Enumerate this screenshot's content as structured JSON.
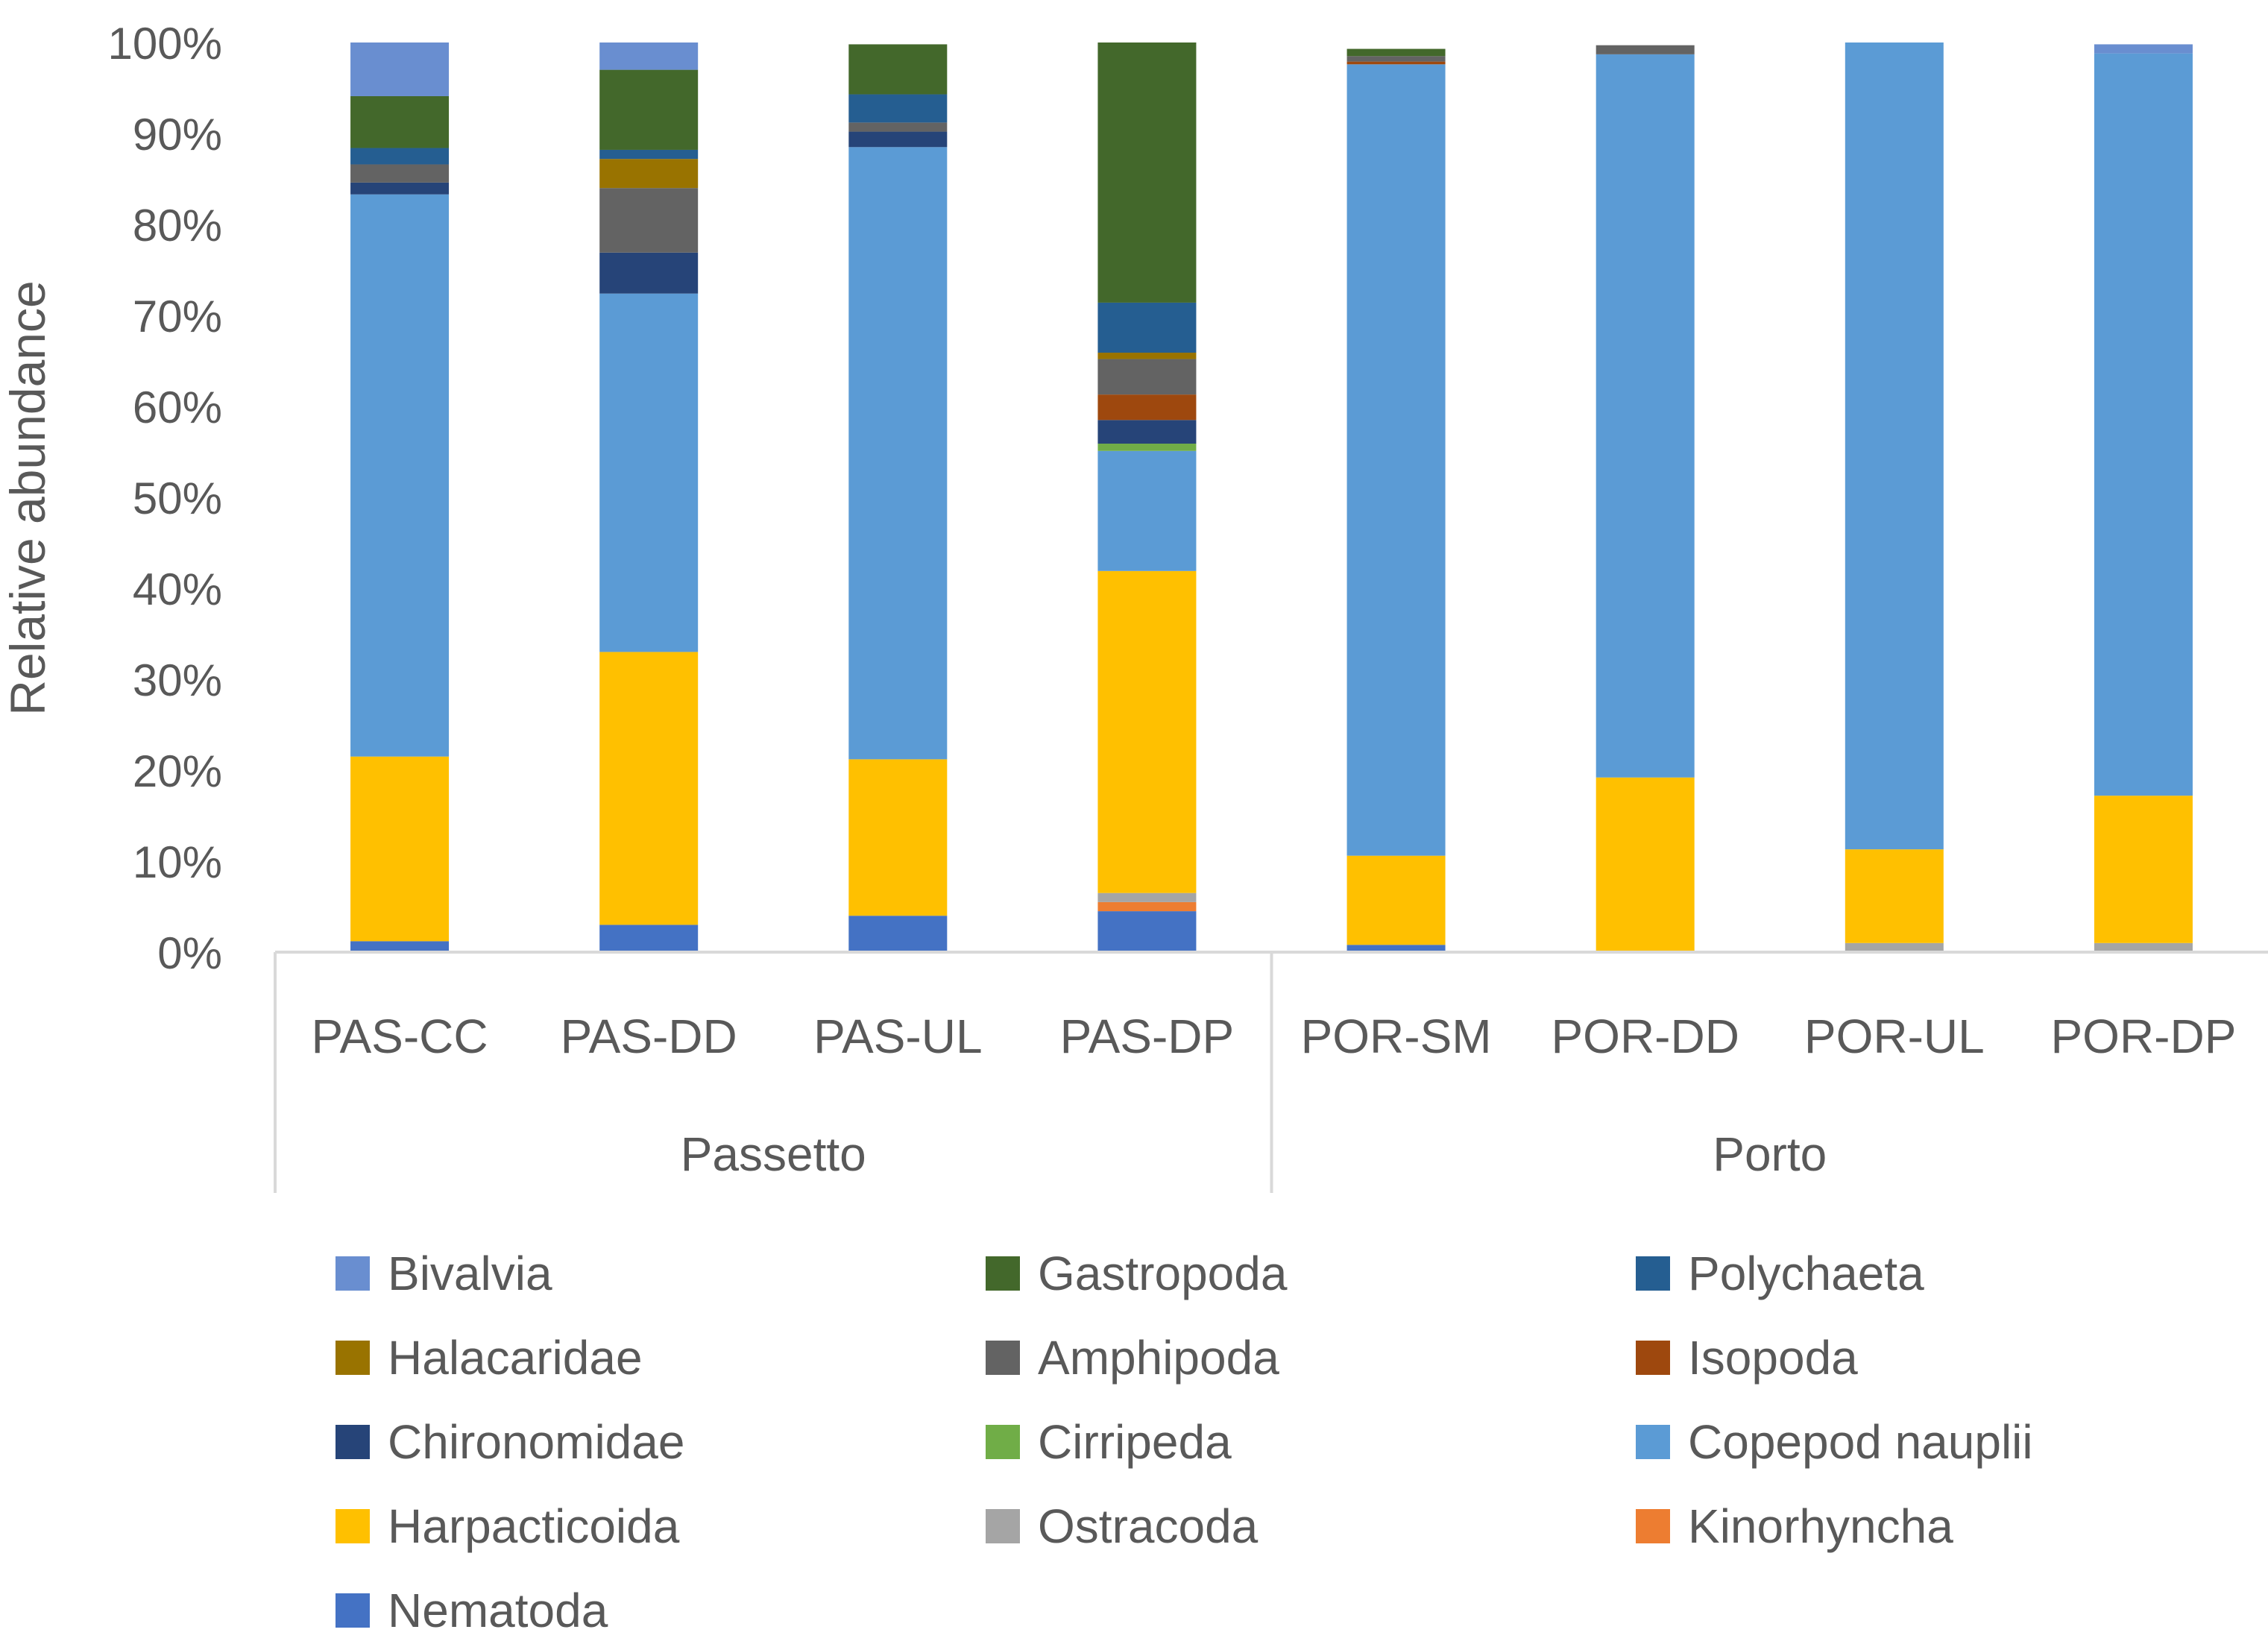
{
  "chart_data": {
    "type": "bar",
    "stacked": true,
    "percent": true,
    "ylabel": "Relative abundance",
    "ylim": [
      0,
      100
    ],
    "yticks": [
      "0%",
      "10%",
      "20%",
      "30%",
      "40%",
      "50%",
      "60%",
      "70%",
      "80%",
      "90%",
      "100%"
    ],
    "grid": false,
    "legend_position": "bottom",
    "groups": [
      {
        "name": "Passetto",
        "categories": [
          "PAS-CC",
          "PAS-DD",
          "PAS-UL",
          "PAS-DP"
        ]
      },
      {
        "name": "Porto",
        "categories": [
          "POR-SM",
          "POR-DD",
          "POR-UL",
          "POR-DP"
        ]
      }
    ],
    "categories": [
      "PAS-CC",
      "PAS-DD",
      "PAS-UL",
      "PAS-DP",
      "POR-SM",
      "POR-DD",
      "POR-UL",
      "POR-DP"
    ],
    "series": [
      {
        "name": "Nematoda",
        "color": "#4472C4",
        "values": [
          1.2,
          3.0,
          4.0,
          4.5,
          0.8,
          0.0,
          0.0,
          0.0
        ]
      },
      {
        "name": "Kinorhyncha",
        "color": "#ED7D31",
        "values": [
          0.0,
          0.0,
          0.0,
          1.0,
          0.0,
          0.0,
          0.0,
          0.0
        ]
      },
      {
        "name": "Ostracoda",
        "color": "#A5A5A5",
        "values": [
          0.0,
          0.0,
          0.0,
          1.0,
          0.0,
          0.0,
          1.0,
          1.0
        ]
      },
      {
        "name": "Harpacticoida",
        "color": "#FFC000",
        "values": [
          20.3,
          30.0,
          17.2,
          35.4,
          9.8,
          19.2,
          10.3,
          16.2
        ]
      },
      {
        "name": "Copepod nauplii",
        "color": "#5B9BD5",
        "values": [
          61.8,
          39.4,
          67.3,
          13.2,
          87.0,
          79.5,
          88.7,
          81.6
        ]
      },
      {
        "name": "Cirripeda",
        "color": "#70AD47",
        "values": [
          0.0,
          0.0,
          0.0,
          0.8,
          0.0,
          0.0,
          0.0,
          0.0
        ]
      },
      {
        "name": "Chironomidae",
        "color": "#264478",
        "values": [
          1.3,
          4.5,
          1.7,
          2.6,
          0.0,
          0.0,
          0.0,
          0.0
        ]
      },
      {
        "name": "Isopoda",
        "color": "#9E480E",
        "values": [
          0.0,
          0.0,
          0.0,
          2.8,
          0.3,
          0.0,
          0.0,
          0.0
        ]
      },
      {
        "name": "Amphipoda",
        "color": "#636363",
        "values": [
          2.0,
          7.1,
          1.0,
          3.9,
          0.6,
          1.0,
          0.0,
          0.0
        ]
      },
      {
        "name": "Halacaridae",
        "color": "#997300",
        "values": [
          0.0,
          3.2,
          0.0,
          0.7,
          0.0,
          0.0,
          0.0,
          0.0
        ]
      },
      {
        "name": "Polychaeta",
        "color": "#255E91",
        "values": [
          1.8,
          1.0,
          3.1,
          5.5,
          0.0,
          0.0,
          0.0,
          0.0
        ]
      },
      {
        "name": "Gastropoda",
        "color": "#43682B",
        "values": [
          5.7,
          8.8,
          5.5,
          28.6,
          0.8,
          0.0,
          0.0,
          0.0
        ]
      },
      {
        "name": "Bivalvia",
        "color": "#698ED0",
        "values": [
          5.9,
          3.0,
          0.0,
          0.0,
          0.0,
          0.0,
          0.0,
          1.0
        ]
      }
    ],
    "legend_order": [
      "Bivalvia",
      "Gastropoda",
      "Polychaeta",
      "Halacaridae",
      "Amphipoda",
      "Isopoda",
      "Chironomidae",
      "Cirripeda",
      "Copepod nauplii",
      "Harpacticoida",
      "Ostracoda",
      "Kinorhyncha",
      "Nematoda"
    ]
  }
}
